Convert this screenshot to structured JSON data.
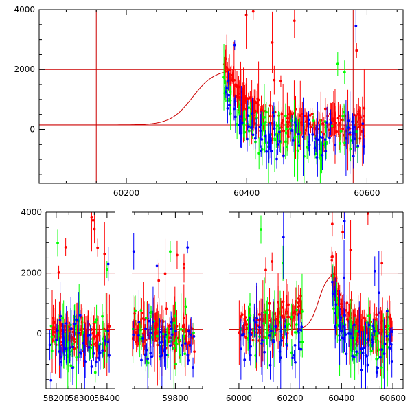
{
  "figure": {
    "colors": {
      "green": "#00ff00",
      "blue": "#0000ff",
      "red": "#ff0000",
      "reference_line": "#cc0000",
      "axis": "#000000",
      "background": "#ffffff"
    }
  },
  "chart_data": [
    {
      "type": "scatter",
      "panel": "top",
      "title": "",
      "xlabel": "",
      "ylabel": "",
      "xlim": [
        60055,
        60660
      ],
      "ylim": [
        -1800,
        4000
      ],
      "x_ticks": [
        {
          "value": 60200,
          "label": "60200"
        },
        {
          "value": 60400,
          "label": "60400"
        },
        {
          "value": 60600,
          "label": "60600"
        }
      ],
      "y_ticks": [
        {
          "value": 0,
          "label": "0"
        },
        {
          "value": 2000,
          "label": "2000"
        },
        {
          "value": 4000,
          "label": "4000"
        }
      ],
      "grid": false,
      "legend": "none",
      "reference_lines": {
        "horizontal": [
          150,
          2000
        ],
        "vertical": [
          60150,
          60577
        ],
        "model_curve": {
          "baseline": 150,
          "peak": 2000,
          "rise_center": 60310,
          "rise_width": 18,
          "peak_x": 60368
        }
      },
      "series": [
        {
          "color": "red",
          "clusters": [
            {
              "x_range": [
                60362,
                60440
              ],
              "trend": "decay",
              "start": 2300,
              "end": 400,
              "scatter": 300,
              "points": 70
            },
            {
              "x_range": [
                60440,
                60600
              ],
              "trend": "flat",
              "level": 200,
              "scatter": 350,
              "points": 110
            }
          ]
        },
        {
          "color": "green",
          "clusters": [
            {
              "x_range": [
                60362,
                60440
              ],
              "trend": "decay",
              "start": 1600,
              "end": -200,
              "scatter": 450,
              "points": 35
            },
            {
              "x_range": [
                60440,
                60600
              ],
              "trend": "flat",
              "level": -300,
              "scatter": 600,
              "points": 50
            }
          ]
        },
        {
          "color": "blue",
          "clusters": [
            {
              "x_range": [
                60362,
                60440
              ],
              "trend": "decay",
              "start": 1400,
              "end": -300,
              "scatter": 450,
              "points": 35
            },
            {
              "x_range": [
                60440,
                60600
              ],
              "trend": "flat",
              "level": -400,
              "scatter": 600,
              "points": 50
            }
          ]
        }
      ]
    },
    {
      "type": "scatter",
      "panel": "bottom",
      "title": "",
      "xlabel": "",
      "ylabel": "",
      "broken_x_axis": true,
      "ylim": [
        -1800,
        4000
      ],
      "y_ticks": [
        {
          "value": 0,
          "label": "0"
        },
        {
          "value": 2000,
          "label": "2000"
        },
        {
          "value": 4000,
          "label": "4000"
        }
      ],
      "grid": false,
      "legend": "none",
      "segments": [
        {
          "xlim": [
            58160,
            58430
          ],
          "x_ticks": [
            {
              "value": 58200,
              "label": "58200"
            },
            {
              "value": 58300,
              "label": "58300"
            },
            {
              "value": 58400,
              "label": "58400"
            }
          ]
        },
        {
          "xlim": [
            59640,
            59900
          ],
          "x_ticks": [
            {
              "value": 59800,
              "label": "59800"
            }
          ]
        },
        {
          "xlim": [
            59960,
            60640
          ],
          "x_ticks": [
            {
              "value": 60000,
              "label": "60000"
            },
            {
              "value": 60200,
              "label": "60200"
            },
            {
              "value": 60400,
              "label": "60400"
            },
            {
              "value": 60600,
              "label": "60600"
            }
          ]
        }
      ],
      "reference_lines": {
        "horizontal": [
          150,
          2000
        ],
        "model_curve": {
          "baseline": 150,
          "peak": 2000,
          "rise_center": 60310,
          "rise_width": 18,
          "peak_x": 60368
        }
      },
      "series": [
        {
          "color": "red",
          "clusters": [
            {
              "x_range": [
                58175,
                58410
              ],
              "trend": "flat",
              "level": 0,
              "scatter": 350,
              "points": 120
            },
            {
              "x_range": [
                59640,
                59870
              ],
              "trend": "flat",
              "level": 100,
              "scatter": 400,
              "points": 110
            },
            {
              "x_range": [
                60000,
                60250
              ],
              "trend": "rise",
              "start": 200,
              "end": 900,
              "scatter": 400,
              "points": 110
            },
            {
              "x_range": [
                60362,
                60440
              ],
              "trend": "decay",
              "start": 2300,
              "end": 400,
              "scatter": 300,
              "points": 55
            },
            {
              "x_range": [
                60440,
                60600
              ],
              "trend": "flat",
              "level": 200,
              "scatter": 350,
              "points": 80
            }
          ]
        },
        {
          "color": "green",
          "clusters": [
            {
              "x_range": [
                58175,
                58410
              ],
              "trend": "flat",
              "level": -200,
              "scatter": 650,
              "points": 45
            },
            {
              "x_range": [
                59640,
                59870
              ],
              "trend": "flat",
              "level": -100,
              "scatter": 650,
              "points": 40
            },
            {
              "x_range": [
                60000,
                60250
              ],
              "trend": "flat",
              "level": 100,
              "scatter": 650,
              "points": 40
            },
            {
              "x_range": [
                60362,
                60440
              ],
              "trend": "decay",
              "start": 1600,
              "end": -200,
              "scatter": 450,
              "points": 25
            },
            {
              "x_range": [
                60440,
                60600
              ],
              "trend": "flat",
              "level": -300,
              "scatter": 600,
              "points": 35
            }
          ]
        },
        {
          "color": "blue",
          "clusters": [
            {
              "x_range": [
                58175,
                58410
              ],
              "trend": "flat",
              "level": -300,
              "scatter": 650,
              "points": 45
            },
            {
              "x_range": [
                59640,
                59870
              ],
              "trend": "flat",
              "level": -300,
              "scatter": 650,
              "points": 40
            },
            {
              "x_range": [
                60000,
                60250
              ],
              "trend": "flat",
              "level": -200,
              "scatter": 650,
              "points": 40
            },
            {
              "x_range": [
                60362,
                60440
              ],
              "trend": "decay",
              "start": 1400,
              "end": -300,
              "scatter": 450,
              "points": 25
            },
            {
              "x_range": [
                60440,
                60600
              ],
              "trend": "flat",
              "level": -400,
              "scatter": 600,
              "points": 35
            }
          ]
        }
      ]
    }
  ]
}
